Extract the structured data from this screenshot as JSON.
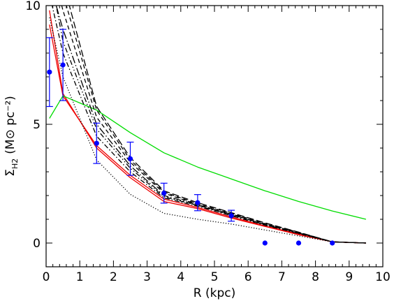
{
  "chart_data": {
    "type": "line",
    "title": "",
    "xlabel": "R (kpc)",
    "ylabel": "Σ",
    "ylabel_sub": "H2",
    "ylabel_units": "(M⊙ pc⁻²)",
    "xlim": [
      0,
      10
    ],
    "ylim": [
      -1,
      10
    ],
    "xticks": [
      0,
      1,
      2,
      3,
      4,
      5,
      6,
      7,
      8,
      9,
      10
    ],
    "xtick_labels": [
      "0",
      "1",
      "2",
      "3",
      "4",
      "5",
      "6",
      "7",
      "8",
      "9",
      "10"
    ],
    "yticks": [
      0,
      5,
      10
    ],
    "ytick_labels": [
      "0",
      "5",
      "10"
    ],
    "grid": false,
    "observations": {
      "color": "#0000ff",
      "points": [
        {
          "x": 0.1,
          "y": 7.2,
          "err": 1.45
        },
        {
          "x": 0.5,
          "y": 7.5,
          "err": 1.5
        },
        {
          "x": 1.5,
          "y": 4.2,
          "err": 0.85
        },
        {
          "x": 2.5,
          "y": 3.55,
          "err": 0.7
        },
        {
          "x": 3.5,
          "y": 2.1,
          "err": 0.42
        },
        {
          "x": 4.5,
          "y": 1.7,
          "err": 0.34
        },
        {
          "x": 5.5,
          "y": 1.15,
          "err": 0.23
        },
        {
          "x": 6.5,
          "y": 0.0,
          "err": 0.0
        },
        {
          "x": 7.5,
          "y": 0.0,
          "err": 0.0
        },
        {
          "x": 8.5,
          "y": 0.0,
          "err": 0.0
        }
      ]
    },
    "series": [
      {
        "style": "red-solid",
        "color": "#ee0000",
        "x": [
          0.1,
          0.5,
          1.5,
          2.5,
          3.5,
          4.5,
          5.5,
          6.5,
          7.5,
          8.5,
          9.5
        ],
        "y": [
          9.8,
          6.3,
          4.0,
          2.75,
          1.75,
          1.45,
          1.05,
          0.7,
          0.35,
          0.05,
          0.0
        ]
      },
      {
        "style": "red-solid",
        "color": "#ee0000",
        "x": [
          0.1,
          0.5,
          1.5,
          2.5,
          3.5,
          4.5,
          5.5,
          6.5,
          7.5,
          8.5,
          9.5
        ],
        "y": [
          9.2,
          6.2,
          4.1,
          2.85,
          1.85,
          1.5,
          1.1,
          0.72,
          0.38,
          0.05,
          0.0
        ]
      },
      {
        "style": "green-solid",
        "color": "#00dd00",
        "x": [
          0.1,
          0.5,
          1.5,
          2.5,
          3.5,
          4.5,
          5.5,
          6.5,
          7.5,
          8.5,
          9.5
        ],
        "y": [
          5.25,
          6.2,
          5.6,
          4.65,
          3.8,
          3.2,
          2.7,
          2.2,
          1.75,
          1.35,
          1.0
        ]
      },
      {
        "style": "dotted",
        "color": "#000000",
        "x": [
          0.1,
          0.5,
          1.5,
          2.5,
          3.5,
          4.5,
          5.5,
          6.5,
          7.5,
          8.5,
          9.5
        ],
        "y": [
          9.5,
          7.0,
          3.5,
          2.05,
          1.25,
          1.0,
          0.8,
          0.55,
          0.3,
          0.05,
          0.0
        ]
      },
      {
        "style": "dash-dot",
        "color": "#000000",
        "x": [
          0.1,
          0.5,
          1.5,
          2.5,
          3.5,
          4.5,
          5.5,
          6.5,
          7.5,
          8.5,
          9.5
        ],
        "y": [
          10.5,
          8.0,
          4.5,
          3.0,
          1.9,
          1.55,
          1.15,
          0.75,
          0.4,
          0.05,
          0.0
        ]
      },
      {
        "style": "long-dash-dot",
        "color": "#000000",
        "x": [
          0.1,
          0.5,
          1.5,
          2.5,
          3.5,
          4.5,
          5.5,
          6.5,
          7.5,
          8.5,
          9.5
        ],
        "y": [
          11.0,
          9.0,
          5.0,
          3.25,
          2.0,
          1.6,
          1.2,
          0.78,
          0.42,
          0.05,
          0.0
        ]
      },
      {
        "style": "dashed",
        "color": "#000000",
        "x": [
          0.1,
          0.5,
          1.5,
          2.5,
          3.5,
          4.5,
          5.5,
          6.5,
          7.5,
          8.5,
          9.5
        ],
        "y": [
          12.0,
          10.5,
          5.6,
          3.5,
          2.15,
          1.65,
          1.25,
          0.82,
          0.45,
          0.05,
          0.0
        ]
      },
      {
        "style": "long-dash",
        "color": "#000000",
        "x": [
          0.1,
          0.5,
          1.5,
          2.5,
          3.5,
          4.5,
          5.5,
          6.5,
          7.5,
          8.5,
          9.5
        ],
        "y": [
          12.0,
          11.0,
          5.75,
          3.6,
          2.2,
          1.7,
          1.28,
          0.85,
          0.46,
          0.05,
          0.0
        ]
      },
      {
        "style": "dash-dot-dot",
        "color": "#000000",
        "x": [
          0.1,
          0.5,
          1.5,
          2.5,
          3.5,
          4.5,
          5.5,
          6.5,
          7.5,
          8.5,
          9.5
        ],
        "y": [
          11.5,
          8.5,
          4.8,
          3.15,
          1.95,
          1.58,
          1.18,
          0.77,
          0.41,
          0.05,
          0.0
        ]
      },
      {
        "style": "dashed",
        "color": "#000000",
        "x": [
          0.1,
          0.5,
          1.5,
          2.5,
          3.5,
          4.5,
          5.5,
          6.5,
          7.5,
          8.5,
          9.5
        ],
        "y": [
          12.0,
          9.8,
          5.3,
          3.4,
          2.1,
          1.62,
          1.22,
          0.8,
          0.44,
          0.05,
          0.0
        ]
      }
    ]
  }
}
